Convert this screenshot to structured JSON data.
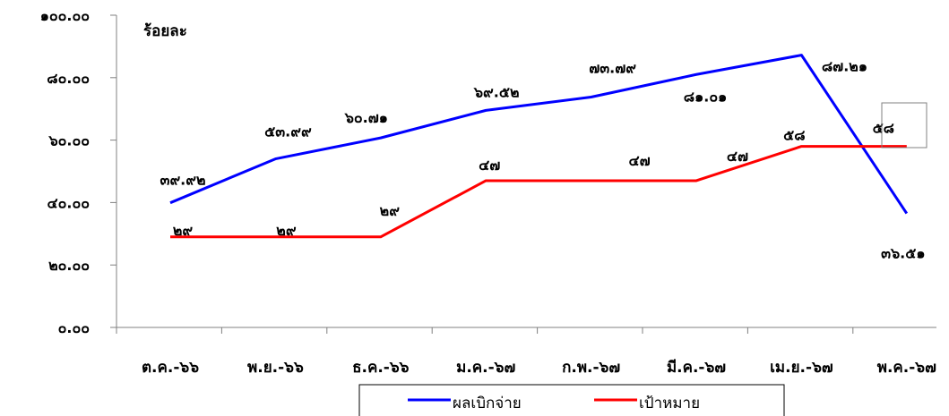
{
  "chart_data": {
    "type": "line",
    "unit_label": "ร้อยละ",
    "categories": [
      "ต.ค.-๖๖",
      "พ.ย.-๖๖",
      "ธ.ค.-๖๖",
      "ม.ค.-๖๗",
      "ก.พ.-๖๗",
      "มี.ค.-๖๗",
      "เม.ย.-๖๗",
      "พ.ค.-๖๗"
    ],
    "y_tick_labels": [
      "๐.๐๐",
      "๒๐.๐๐",
      "๔๐.๐๐",
      "๖๐.๐๐",
      "๘๐.๐๐",
      "๑๐๐.๐๐"
    ],
    "y_ticks": [
      0,
      20,
      40,
      60,
      80,
      100
    ],
    "ylim": [
      0,
      100
    ],
    "series": [
      {
        "name": "ผลเบิกจ่าย",
        "color": "#0000FF",
        "values": [
          39.92,
          53.99,
          60.71,
          69.52,
          73.79,
          81.01,
          87.21,
          36.51
        ],
        "labels": [
          "๓๙.๙๒",
          "๕๓.๙๙",
          "๖๐.๗๑",
          "๖๙.๕๒",
          "๗๓.๗๙",
          "๘๑.๐๑",
          "๘๗.๒๑",
          "๓๖.๕๑"
        ]
      },
      {
        "name": "เป้าหมาย",
        "color": "#FF0000",
        "values": [
          29,
          29,
          29,
          47,
          47,
          47,
          58,
          58
        ],
        "labels": [
          "๒๙",
          "๒๙",
          "๒๙",
          "๔๗",
          "๔๗",
          "๔๗",
          "๕๘",
          "๕๘"
        ]
      }
    ],
    "legend_position": "bottom-center",
    "grid": false
  }
}
